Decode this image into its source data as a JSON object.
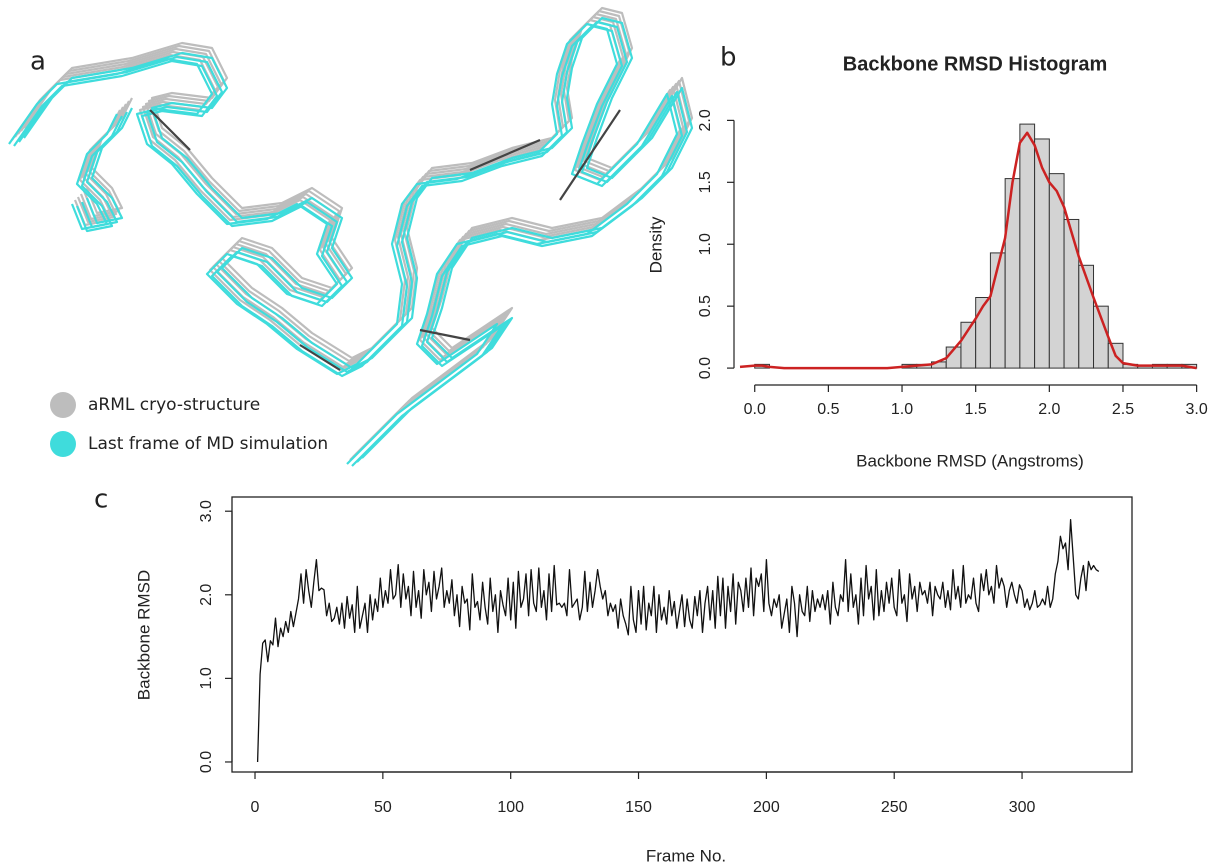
{
  "figure": {
    "panel_labels": [
      "a",
      "b",
      "c"
    ],
    "legend": [
      {
        "name": "aRML cryo-structure",
        "color": "#bdbdbd"
      },
      {
        "name": "Last frame of MD simulation",
        "color": "#3fdcdc"
      }
    ]
  },
  "chart_data": [
    {
      "type": "histogram",
      "title": "Backbone RMSD Histogram",
      "xlabel": "Backbone RMSD (Angstroms)",
      "ylabel": "Density",
      "bins": [
        0.0,
        0.1,
        0.2,
        0.3,
        0.4,
        0.5,
        0.6,
        0.7,
        0.8,
        0.9,
        1.0,
        1.1,
        1.2,
        1.3,
        1.4,
        1.5,
        1.6,
        1.7,
        1.8,
        1.9,
        2.0,
        2.1,
        2.2,
        2.3,
        2.4,
        2.5,
        2.6,
        2.7,
        2.8,
        2.9,
        3.0
      ],
      "values": [
        0.03,
        0,
        0,
        0,
        0,
        0,
        0,
        0,
        0,
        0,
        0.03,
        0.03,
        0.05,
        0.17,
        0.37,
        0.57,
        0.93,
        1.53,
        1.97,
        1.85,
        1.57,
        1.2,
        0.83,
        0.5,
        0.2,
        0.03,
        0.02,
        0.03,
        0.03,
        0.03
      ],
      "color": "#d3d3d3",
      "density": {
        "color": "#cc2222",
        "x": [
          -0.1,
          0.0,
          0.05,
          0.1,
          0.2,
          0.5,
          0.9,
          1.0,
          1.1,
          1.2,
          1.3,
          1.4,
          1.5,
          1.55,
          1.6,
          1.7,
          1.75,
          1.8,
          1.85,
          1.9,
          1.95,
          2.0,
          2.05,
          2.1,
          2.15,
          2.2,
          2.3,
          2.4,
          2.45,
          2.5,
          2.6,
          2.8,
          2.9,
          3.0
        ],
        "values": [
          0.01,
          0.02,
          0.02,
          0.01,
          0.0,
          0.0,
          0.0,
          0.01,
          0.02,
          0.03,
          0.08,
          0.22,
          0.4,
          0.5,
          0.58,
          1.05,
          1.5,
          1.82,
          1.9,
          1.8,
          1.62,
          1.5,
          1.43,
          1.3,
          1.1,
          0.9,
          0.57,
          0.25,
          0.1,
          0.04,
          0.02,
          0.02,
          0.02,
          0.0
        ]
      },
      "xlim": [
        -0.1,
        3.05
      ],
      "ylim": [
        -0.08,
        2.1
      ],
      "xticks": [
        {
          "value": 0,
          "label": "0.0"
        },
        0.5,
        {
          "value": 1,
          "label": "1.0"
        },
        1.5,
        {
          "value": 2,
          "label": "2.0"
        },
        2.5,
        {
          "value": 3,
          "label": "3.0"
        }
      ],
      "yticks": [
        {
          "value": 0,
          "label": "0.0"
        },
        0.5,
        {
          "value": 1,
          "label": "1.0"
        },
        1.5,
        {
          "value": 2,
          "label": "2.0"
        }
      ]
    },
    {
      "type": "line",
      "xlabel": "Frame No.",
      "ylabel": "Backbone RMSD",
      "color": "#111111",
      "x": [
        1,
        2,
        3,
        4,
        5,
        6,
        7,
        8,
        9,
        10,
        11,
        12,
        13,
        14,
        15,
        16,
        17,
        18,
        19,
        20,
        21,
        22,
        23,
        24,
        25,
        26,
        27,
        28,
        29,
        30,
        31,
        32,
        33,
        34,
        35,
        36,
        37,
        38,
        39,
        40,
        41,
        42,
        43,
        44,
        45,
        46,
        47,
        48,
        49,
        50,
        51,
        52,
        53,
        54,
        55,
        56,
        57,
        58,
        59,
        60,
        61,
        62,
        63,
        64,
        65,
        66,
        67,
        68,
        69,
        70,
        71,
        72,
        73,
        74,
        75,
        76,
        77,
        78,
        79,
        80,
        81,
        82,
        83,
        84,
        85,
        86,
        87,
        88,
        89,
        90,
        91,
        92,
        93,
        94,
        95,
        96,
        97,
        98,
        99,
        100,
        101,
        102,
        103,
        104,
        105,
        106,
        107,
        108,
        109,
        110,
        111,
        112,
        113,
        114,
        115,
        116,
        117,
        118,
        119,
        120,
        121,
        122,
        123,
        124,
        125,
        126,
        127,
        128,
        129,
        130,
        131,
        132,
        133,
        134,
        135,
        136,
        137,
        138,
        139,
        140,
        141,
        142,
        143,
        144,
        145,
        146,
        147,
        148,
        149,
        150,
        151,
        152,
        153,
        154,
        155,
        156,
        157,
        158,
        159,
        160,
        161,
        162,
        163,
        164,
        165,
        166,
        167,
        168,
        169,
        170,
        171,
        172,
        173,
        174,
        175,
        176,
        177,
        178,
        179,
        180,
        181,
        182,
        183,
        184,
        185,
        186,
        187,
        188,
        189,
        190,
        191,
        192,
        193,
        194,
        195,
        196,
        197,
        198,
        199,
        200,
        201,
        202,
        203,
        204,
        205,
        206,
        207,
        208,
        209,
        210,
        211,
        212,
        213,
        214,
        215,
        216,
        217,
        218,
        219,
        220,
        221,
        222,
        223,
        224,
        225,
        226,
        227,
        228,
        229,
        230,
        231,
        232,
        233,
        234,
        235,
        236,
        237,
        238,
        239,
        240,
        241,
        242,
        243,
        244,
        245,
        246,
        247,
        248,
        249,
        250,
        251,
        252,
        253,
        254,
        255,
        256,
        257,
        258,
        259,
        260,
        261,
        262,
        263,
        264,
        265,
        266,
        267,
        268,
        269,
        270,
        271,
        272,
        273,
        274,
        275,
        276,
        277,
        278,
        279,
        280,
        281,
        282,
        283,
        284,
        285,
        286,
        287,
        288,
        289,
        290,
        291,
        292,
        293,
        294,
        295,
        296,
        297,
        298,
        299,
        300,
        301,
        302,
        303,
        304,
        305,
        306,
        307,
        308,
        309,
        310,
        311,
        312,
        313,
        314,
        315,
        316,
        317,
        318,
        319,
        320,
        321,
        322,
        323,
        324,
        325,
        326,
        327,
        328,
        329,
        330
      ],
      "values": [
        0.0,
        1.05,
        1.42,
        1.46,
        1.2,
        1.45,
        1.4,
        1.72,
        1.38,
        1.6,
        1.5,
        1.68,
        1.55,
        1.8,
        1.62,
        1.78,
        1.95,
        2.25,
        1.9,
        2.3,
        2.05,
        1.85,
        2.15,
        2.42,
        2.05,
        2.08,
        2.06,
        1.75,
        1.9,
        1.68,
        1.72,
        1.85,
        1.65,
        1.9,
        1.6,
        1.98,
        1.72,
        1.88,
        1.55,
        2.1,
        1.6,
        1.75,
        1.9,
        1.55,
        2.0,
        1.7,
        1.95,
        1.8,
        2.2,
        1.85,
        2.05,
        1.9,
        2.3,
        1.95,
        2.0,
        2.36,
        1.85,
        2.25,
        1.95,
        2.1,
        1.75,
        2.28,
        1.85,
        2.05,
        1.72,
        2.3,
        2.0,
        2.15,
        1.8,
        2.28,
        1.95,
        2.1,
        2.32,
        1.85,
        2.05,
        1.9,
        2.18,
        1.75,
        2.0,
        1.62,
        2.1,
        1.9,
        1.95,
        1.58,
        2.25,
        1.85,
        1.92,
        1.7,
        2.15,
        1.85,
        1.65,
        2.2,
        1.8,
        2.0,
        1.55,
        2.05,
        1.88,
        1.75,
        2.2,
        1.7,
        2.15,
        1.6,
        2.28,
        1.85,
        1.95,
        2.25,
        1.75,
        2.3,
        1.9,
        1.8,
        2.32,
        1.85,
        2.05,
        1.7,
        2.25,
        1.8,
        2.35,
        1.88,
        1.9,
        1.85,
        1.9,
        1.75,
        2.3,
        1.85,
        1.9,
        1.95,
        1.7,
        1.85,
        2.28,
        1.8,
        2.15,
        1.85,
        2.05,
        2.3,
        2.1,
        1.95,
        2.05,
        1.75,
        1.9,
        1.8,
        1.88,
        1.6,
        1.95,
        1.75,
        1.65,
        1.52,
        2.1,
        1.7,
        1.55,
        2.05,
        1.65,
        2.1,
        1.58,
        1.9,
        1.75,
        2.1,
        1.55,
        2.0,
        1.7,
        1.85,
        1.65,
        2.05,
        1.75,
        1.92,
        1.6,
        1.8,
        2.0,
        1.62,
        1.95,
        1.7,
        1.6,
        1.98,
        1.75,
        2.05,
        1.55,
        1.9,
        2.1,
        1.7,
        2.05,
        1.6,
        2.22,
        1.75,
        2.2,
        1.6,
        2.1,
        1.8,
        2.25,
        1.65,
        2.15,
        2.05,
        1.8,
        2.2,
        1.85,
        2.32,
        1.75,
        2.2,
        2.1,
        2.25,
        1.8,
        2.42,
        1.9,
        1.75,
        1.95,
        1.85,
        2.0,
        1.6,
        1.78,
        1.95,
        1.55,
        2.1,
        1.9,
        1.5,
        2.0,
        1.8,
        1.75,
        2.1,
        1.68,
        2.05,
        1.8,
        1.95,
        1.85,
        2.0,
        1.82,
        2.05,
        1.65,
        2.15,
        1.85,
        1.75,
        2.0,
        1.92,
        2.42,
        1.8,
        2.25,
        1.85,
        2.0,
        1.65,
        2.2,
        1.75,
        2.35,
        1.95,
        2.1,
        1.7,
        2.3,
        1.75,
        2.05,
        1.8,
        2.15,
        1.9,
        2.2,
        1.85,
        1.75,
        2.3,
        1.9,
        2.0,
        1.68,
        2.25,
        1.95,
        2.1,
        1.8,
        2.15,
        2.0,
        2.05,
        1.9,
        2.15,
        1.75,
        2.1,
        2.0,
        1.95,
        2.15,
        1.85,
        2.05,
        1.82,
        2.3,
        1.95,
        2.1,
        1.85,
        2.35,
        1.9,
        2.0,
        1.95,
        2.2,
        1.9,
        1.8,
        2.25,
        2.05,
        2.3,
        2.0,
        2.1,
        1.9,
        2.35,
        2.08,
        2.2,
        2.1,
        1.85,
        2.05,
        2.15,
        2.0,
        1.9,
        2.12,
        2.05,
        1.85,
        1.95,
        1.82,
        1.9,
        2.05,
        1.85,
        1.88,
        1.95,
        1.88,
        2.1,
        1.85,
        1.95,
        2.25,
        2.4,
        2.7,
        2.55,
        2.62,
        2.3,
        2.9,
        2.45,
        2.0,
        1.95,
        2.2,
        2.35,
        2.05,
        2.4,
        2.3,
        2.35,
        2.3,
        2.28
      ],
      "xlim": [
        -9,
        343
      ],
      "ylim": [
        -0.12,
        3.17
      ],
      "xticks": [
        0,
        50,
        100,
        150,
        200,
        250,
        300
      ],
      "yticks": [
        {
          "value": 0,
          "label": "0.0"
        },
        {
          "value": 1,
          "label": "1.0"
        },
        {
          "value": 2,
          "label": "2.0"
        },
        {
          "value": 3,
          "label": "3.0"
        }
      ]
    }
  ]
}
